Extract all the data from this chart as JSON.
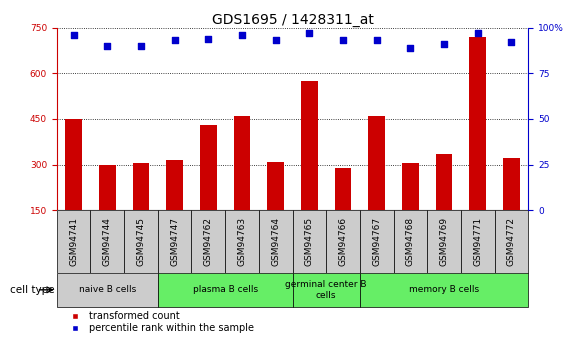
{
  "title": "GDS1695 / 1428311_at",
  "samples": [
    "GSM94741",
    "GSM94744",
    "GSM94745",
    "GSM94747",
    "GSM94762",
    "GSM94763",
    "GSM94764",
    "GSM94765",
    "GSM94766",
    "GSM94767",
    "GSM94768",
    "GSM94769",
    "GSM94771",
    "GSM94772"
  ],
  "transformed_count": [
    450,
    300,
    305,
    315,
    430,
    460,
    310,
    575,
    290,
    460,
    305,
    335,
    720,
    320
  ],
  "percentile_rank": [
    96,
    90,
    90,
    93,
    94,
    96,
    93,
    97,
    93,
    93,
    89,
    91,
    97,
    92
  ],
  "ylim_left": [
    150,
    750
  ],
  "ylim_right": [
    0,
    100
  ],
  "yticks_left": [
    150,
    300,
    450,
    600,
    750
  ],
  "yticks_right": [
    0,
    25,
    50,
    75,
    100
  ],
  "bar_color": "#cc0000",
  "dot_color": "#0000cc",
  "sample_box_color": "#cccccc",
  "cell_groups": [
    {
      "label": "naive B cells",
      "indices": [
        0,
        1,
        2
      ],
      "color": "#cccccc"
    },
    {
      "label": "plasma B cells",
      "indices": [
        3,
        4,
        5,
        6
      ],
      "color": "#66ee66"
    },
    {
      "label": "germinal center B\ncells",
      "indices": [
        7,
        8
      ],
      "color": "#66ee66"
    },
    {
      "label": "memory B cells",
      "indices": [
        9,
        10,
        11,
        12,
        13
      ],
      "color": "#66ee66"
    }
  ],
  "legend_bar_label": "transformed count",
  "legend_dot_label": "percentile rank within the sample",
  "cell_type_label": "cell type",
  "title_fontsize": 10,
  "tick_fontsize": 6.5,
  "label_fontsize": 7.5,
  "legend_fontsize": 7
}
